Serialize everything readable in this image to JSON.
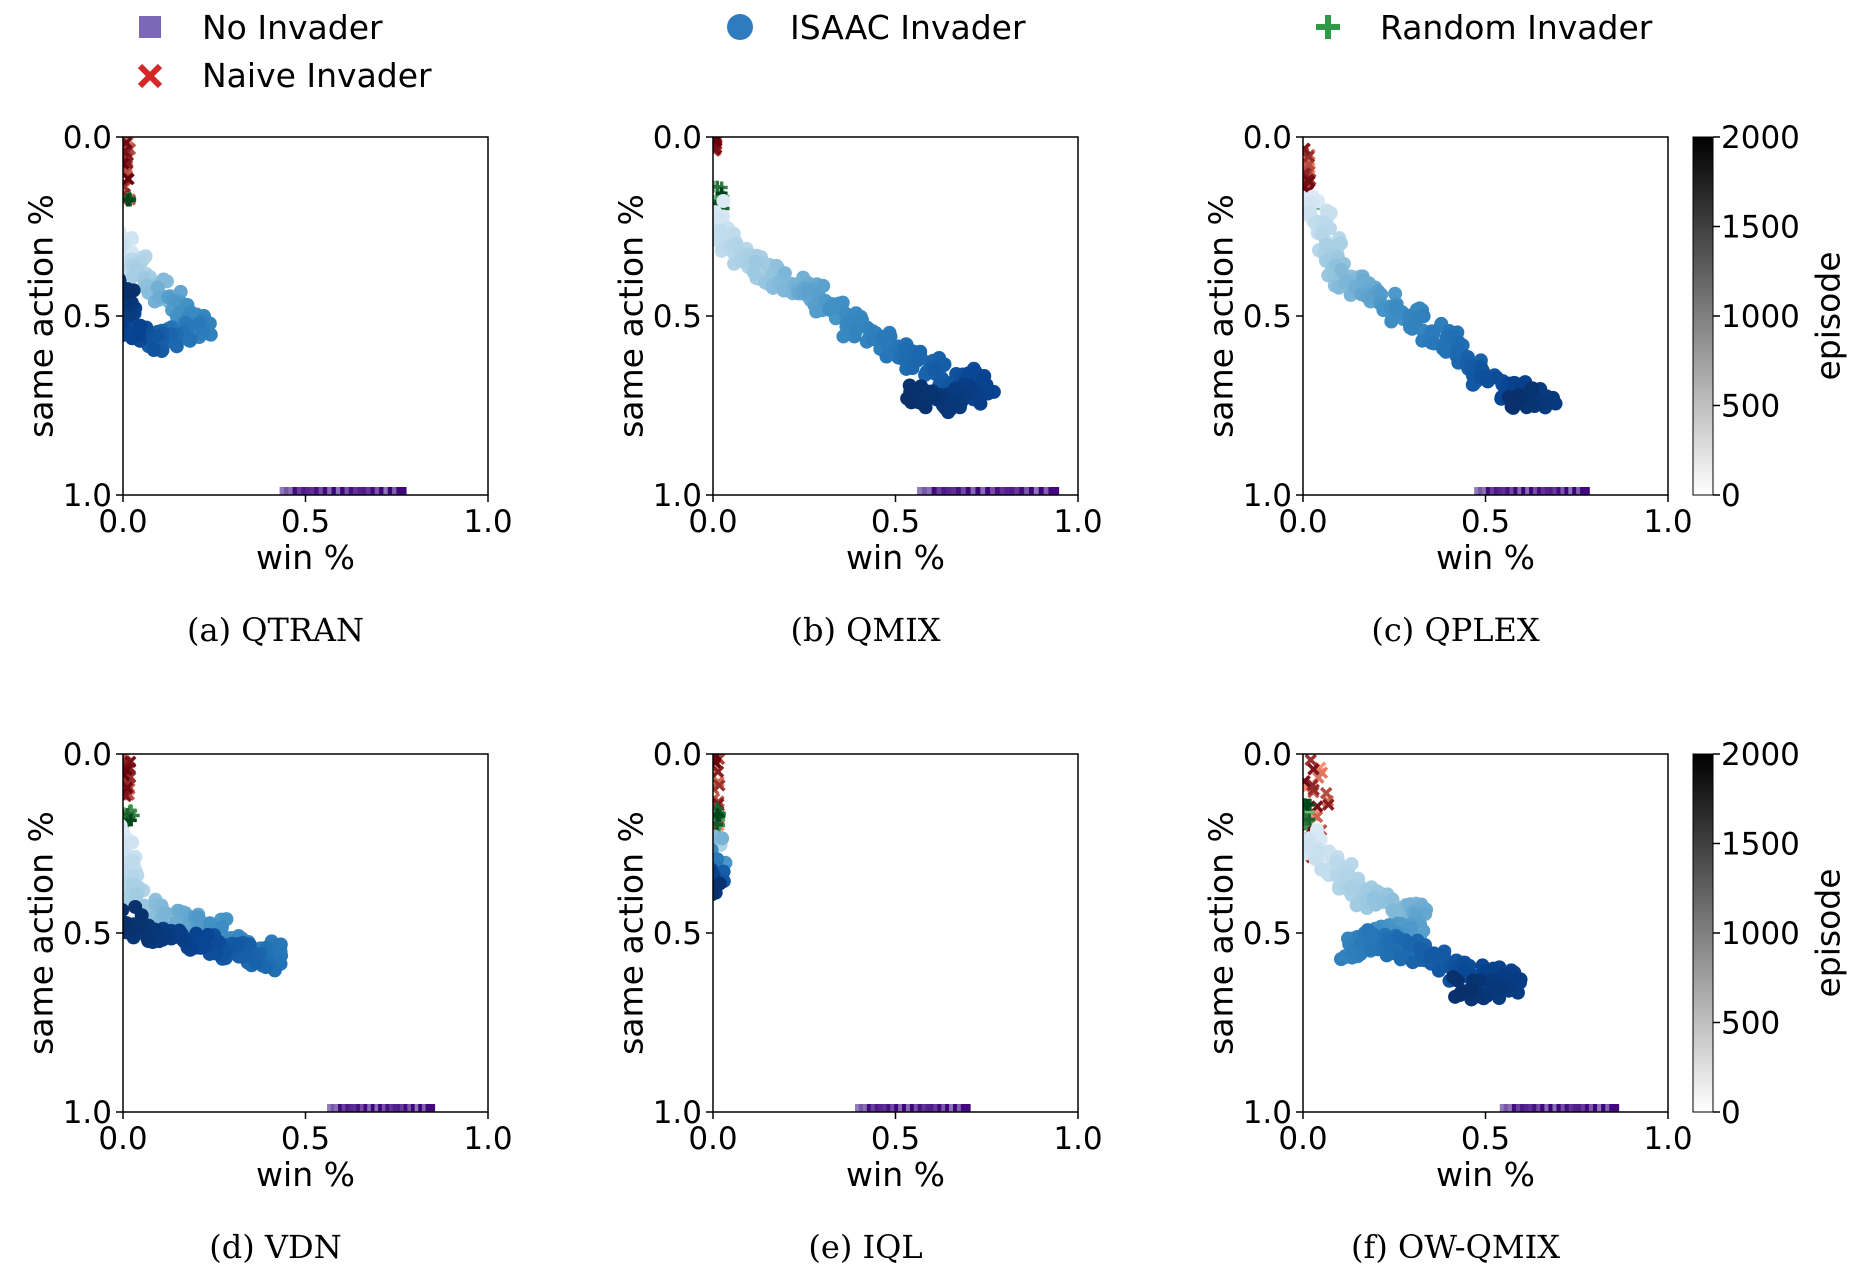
{
  "legend": {
    "items": [
      {
        "label": "No Invader",
        "marker": "square",
        "color": "#7b68b6"
      },
      {
        "label": "ISAAC Invader",
        "marker": "circle",
        "color": "#2f7bbf"
      },
      {
        "label": "Random Invader",
        "marker": "plus",
        "color": "#2e9a48"
      },
      {
        "label": "Naive Invader",
        "marker": "x",
        "color": "#d62728"
      }
    ]
  },
  "colorbar": {
    "label": "episode",
    "ticks": [
      "0",
      "500",
      "1000",
      "1500",
      "2000"
    ],
    "range": [
      0,
      2000
    ]
  },
  "chart_data": [
    {
      "type": "scatter",
      "caption": "(a) QTRAN",
      "xlabel": "win %",
      "ylabel": "same action %",
      "xlim": [
        0,
        1
      ],
      "ylim": [
        1,
        0
      ],
      "xticks": [
        "0.0",
        "0.5",
        "1.0"
      ],
      "yticks": [
        "0.0",
        "0.5",
        "1.0"
      ],
      "grid": false,
      "colorbar": false,
      "series": [
        {
          "marker": "square",
          "x": [
            0.44,
            0.76
          ],
          "y": [
            1.0,
            1.0
          ]
        },
        {
          "marker": "x",
          "x": [
            0.0,
            0.02
          ],
          "y": [
            0.0,
            0.18
          ]
        },
        {
          "marker": "plus",
          "x": [
            0.01,
            0.02
          ],
          "y": [
            0.17,
            0.18
          ]
        },
        {
          "marker": "circle",
          "path": [
            [
              0.0,
              0.28
            ],
            [
              0.04,
              0.38
            ],
            [
              0.1,
              0.43
            ],
            [
              0.14,
              0.47
            ],
            [
              0.18,
              0.5
            ],
            [
              0.22,
              0.54
            ],
            [
              0.12,
              0.56
            ],
            [
              0.08,
              0.58
            ],
            [
              0.03,
              0.55
            ],
            [
              0.01,
              0.5
            ],
            [
              0.0,
              0.4
            ]
          ]
        }
      ]
    },
    {
      "type": "scatter",
      "caption": "(b) QMIX",
      "xlabel": "win %",
      "ylabel": "same action %",
      "xlim": [
        0,
        1
      ],
      "ylim": [
        1,
        0
      ],
      "xticks": [
        "0.0",
        "0.5",
        "1.0"
      ],
      "yticks": [
        "0.0",
        "0.5",
        "1.0"
      ],
      "grid": false,
      "colorbar": false,
      "series": [
        {
          "marker": "square",
          "x": [
            0.57,
            0.93
          ],
          "y": [
            1.0,
            1.0
          ]
        },
        {
          "marker": "x",
          "x": [
            0.0,
            0.01
          ],
          "y": [
            0.0,
            0.04
          ]
        },
        {
          "marker": "plus",
          "x": [
            0.0,
            0.03
          ],
          "y": [
            0.13,
            0.2
          ]
        },
        {
          "marker": "circle",
          "path": [
            [
              0.0,
              0.2
            ],
            [
              0.05,
              0.3
            ],
            [
              0.12,
              0.37
            ],
            [
              0.2,
              0.4
            ],
            [
              0.28,
              0.44
            ],
            [
              0.35,
              0.5
            ],
            [
              0.43,
              0.56
            ],
            [
              0.5,
              0.6
            ],
            [
              0.57,
              0.63
            ],
            [
              0.63,
              0.67
            ],
            [
              0.72,
              0.68
            ],
            [
              0.75,
              0.7
            ],
            [
              0.65,
              0.74
            ],
            [
              0.55,
              0.72
            ]
          ]
        }
      ]
    },
    {
      "type": "scatter",
      "caption": "(c) QPLEX",
      "xlabel": "win %",
      "ylabel": "same action %",
      "xlim": [
        0,
        1
      ],
      "ylim": [
        1,
        0
      ],
      "xticks": [
        "0.0",
        "0.5",
        "1.0"
      ],
      "yticks": [
        "0.0",
        "0.5",
        "1.0"
      ],
      "grid": false,
      "colorbar": true,
      "series": [
        {
          "marker": "square",
          "x": [
            0.48,
            0.77
          ],
          "y": [
            1.0,
            1.0
          ]
        },
        {
          "marker": "x",
          "x": [
            0.0,
            0.02
          ],
          "y": [
            0.03,
            0.2
          ]
        },
        {
          "marker": "plus",
          "x": [
            0.01,
            0.03
          ],
          "y": [
            0.17,
            0.2
          ]
        },
        {
          "marker": "circle",
          "path": [
            [
              0.01,
              0.18
            ],
            [
              0.06,
              0.25
            ],
            [
              0.1,
              0.38
            ],
            [
              0.15,
              0.41
            ],
            [
              0.2,
              0.45
            ],
            [
              0.27,
              0.49
            ],
            [
              0.33,
              0.52
            ],
            [
              0.38,
              0.56
            ],
            [
              0.43,
              0.6
            ],
            [
              0.49,
              0.67
            ],
            [
              0.55,
              0.7
            ],
            [
              0.62,
              0.72
            ],
            [
              0.67,
              0.73
            ],
            [
              0.58,
              0.73
            ]
          ]
        }
      ]
    },
    {
      "type": "scatter",
      "caption": "(d) VDN",
      "xlabel": "win %",
      "ylabel": "same action %",
      "xlim": [
        0,
        1
      ],
      "ylim": [
        1,
        0
      ],
      "xticks": [
        "0.0",
        "0.5",
        "1.0"
      ],
      "yticks": [
        "0.0",
        "0.5",
        "1.0"
      ],
      "grid": false,
      "colorbar": false,
      "series": [
        {
          "marker": "square",
          "x": [
            0.57,
            0.84
          ],
          "y": [
            1.0,
            1.0
          ]
        },
        {
          "marker": "x",
          "x": [
            0.0,
            0.02
          ],
          "y": [
            0.0,
            0.12
          ]
        },
        {
          "marker": "plus",
          "x": [
            0.0,
            0.03
          ],
          "y": [
            0.15,
            0.2
          ]
        },
        {
          "marker": "circle",
          "path": [
            [
              0.0,
              0.22
            ],
            [
              0.01,
              0.34
            ],
            [
              0.04,
              0.4
            ],
            [
              0.08,
              0.43
            ],
            [
              0.13,
              0.45
            ],
            [
              0.2,
              0.47
            ],
            [
              0.26,
              0.49
            ],
            [
              0.32,
              0.52
            ],
            [
              0.38,
              0.55
            ],
            [
              0.43,
              0.56
            ],
            [
              0.38,
              0.58
            ],
            [
              0.28,
              0.54
            ],
            [
              0.18,
              0.52
            ],
            [
              0.06,
              0.5
            ],
            [
              0.01,
              0.45
            ]
          ]
        }
      ]
    },
    {
      "type": "scatter",
      "caption": "(e) IQL",
      "xlabel": "win %",
      "ylabel": "same action %",
      "xlim": [
        0,
        1
      ],
      "ylim": [
        1,
        0
      ],
      "xticks": [
        "0.0",
        "0.5",
        "1.0"
      ],
      "yticks": [
        "0.0",
        "0.5",
        "1.0"
      ],
      "grid": false,
      "colorbar": false,
      "series": [
        {
          "marker": "square",
          "x": [
            0.4,
            0.69
          ],
          "y": [
            1.0,
            1.0
          ]
        },
        {
          "marker": "x",
          "x": [
            0.0,
            0.02
          ],
          "y": [
            0.0,
            0.22
          ]
        },
        {
          "marker": "plus",
          "x": [
            0.01,
            0.02
          ],
          "y": [
            0.15,
            0.2
          ]
        },
        {
          "marker": "circle",
          "path": [
            [
              0.0,
              0.22
            ],
            [
              0.01,
              0.26
            ],
            [
              0.0,
              0.3
            ],
            [
              0.01,
              0.34
            ],
            [
              0.0,
              0.38
            ]
          ]
        }
      ]
    },
    {
      "type": "scatter",
      "caption": "(f) OW-QMIX",
      "xlabel": "win %",
      "ylabel": "same action %",
      "xlim": [
        0,
        1
      ],
      "ylim": [
        1,
        0
      ],
      "xticks": [
        "0.0",
        "0.5",
        "1.0"
      ],
      "yticks": [
        "0.0",
        "0.5",
        "1.0"
      ],
      "grid": false,
      "colorbar": true,
      "series": [
        {
          "marker": "square",
          "x": [
            0.55,
            0.85
          ],
          "y": [
            1.0,
            1.0
          ]
        },
        {
          "marker": "x",
          "x": [
            0.0,
            0.07
          ],
          "y": [
            0.0,
            0.3
          ]
        },
        {
          "marker": "plus",
          "x": [
            0.0,
            0.02
          ],
          "y": [
            0.14,
            0.2
          ]
        },
        {
          "marker": "circle",
          "path": [
            [
              0.01,
              0.22
            ],
            [
              0.06,
              0.3
            ],
            [
              0.12,
              0.35
            ],
            [
              0.18,
              0.4
            ],
            [
              0.25,
              0.43
            ],
            [
              0.33,
              0.46
            ],
            [
              0.3,
              0.5
            ],
            [
              0.22,
              0.51
            ],
            [
              0.12,
              0.55
            ],
            [
              0.2,
              0.52
            ],
            [
              0.32,
              0.55
            ],
            [
              0.38,
              0.58
            ],
            [
              0.43,
              0.61
            ],
            [
              0.5,
              0.62
            ],
            [
              0.58,
              0.63
            ],
            [
              0.52,
              0.67
            ],
            [
              0.42,
              0.65
            ]
          ]
        }
      ]
    }
  ]
}
